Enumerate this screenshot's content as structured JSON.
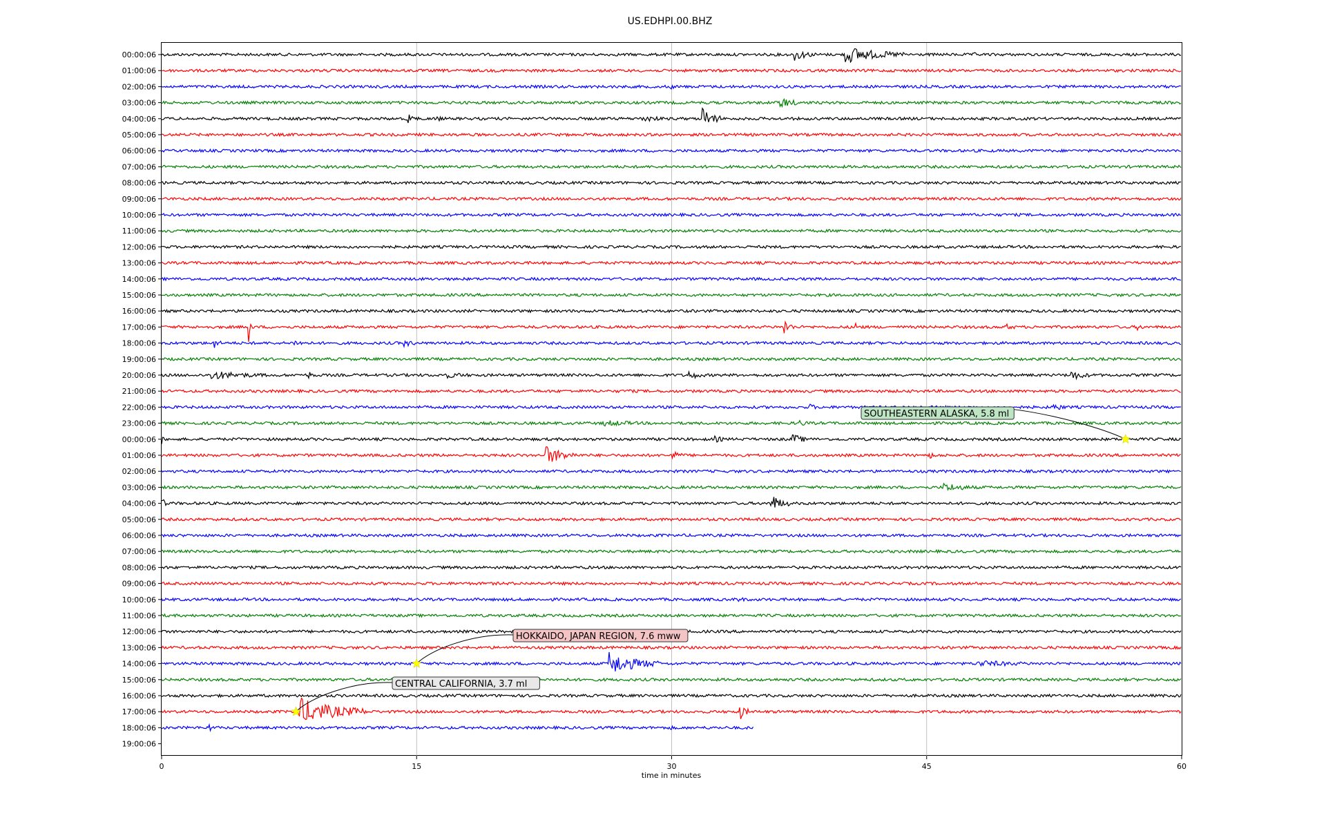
{
  "chart_data": {
    "type": "line",
    "title": "US.EDHPI.00.BHZ",
    "xlabel": "time in minutes",
    "ylabel": "",
    "xlim": [
      0,
      60
    ],
    "x_ticks": [
      "0",
      "15",
      "30",
      "45",
      "60"
    ],
    "grid": "vertical",
    "trace_colors": [
      "#000000",
      "#ff0000",
      "#0000ff",
      "#008000"
    ],
    "row_labels": [
      "00:00:06",
      "01:00:06",
      "02:00:06",
      "03:00:06",
      "04:00:06",
      "05:00:06",
      "06:00:06",
      "07:00:06",
      "08:00:06",
      "09:00:06",
      "10:00:06",
      "11:00:06",
      "12:00:06",
      "13:00:06",
      "14:00:06",
      "15:00:06",
      "16:00:06",
      "17:00:06",
      "18:00:06",
      "19:00:06",
      "20:00:06",
      "21:00:06",
      "22:00:06",
      "23:00:06",
      "00:00:06",
      "01:00:06",
      "02:00:06",
      "03:00:06",
      "04:00:06",
      "05:00:06",
      "06:00:06",
      "07:00:06",
      "08:00:06",
      "09:00:06",
      "10:00:06",
      "11:00:06",
      "12:00:06",
      "13:00:06",
      "14:00:06",
      "15:00:06",
      "16:00:06",
      "17:00:06",
      "18:00:06",
      "19:00:06"
    ],
    "trace_end_minutes": [
      60,
      60,
      60,
      60,
      60,
      60,
      60,
      60,
      60,
      60,
      60,
      60,
      60,
      60,
      60,
      60,
      60,
      60,
      60,
      60,
      60,
      60,
      60,
      60,
      60,
      60,
      60,
      60,
      60,
      60,
      60,
      60,
      60,
      60,
      60,
      60,
      60,
      60,
      60,
      60,
      60,
      60,
      34.8,
      0
    ],
    "bursts": [
      {
        "row": 0,
        "t": 37.2,
        "dur": 1.5,
        "amp": 10
      },
      {
        "row": 0,
        "t": 40.2,
        "dur": 3.6,
        "amp": 14
      },
      {
        "row": 0,
        "t": 47.8,
        "dur": 0.4,
        "amp": 4
      },
      {
        "row": 2,
        "t": 29.8,
        "dur": 0.6,
        "amp": 7
      },
      {
        "row": 3,
        "t": 36.3,
        "dur": 1.6,
        "amp": 10
      },
      {
        "row": 4,
        "t": 14.5,
        "dur": 0.6,
        "amp": 10
      },
      {
        "row": 4,
        "t": 16.1,
        "dur": 0.5,
        "amp": 8
      },
      {
        "row": 4,
        "t": 28.2,
        "dur": 2.5,
        "amp": 6
      },
      {
        "row": 4,
        "t": 31.8,
        "dur": 1.1,
        "amp": 18
      },
      {
        "row": 17,
        "t": 5.1,
        "dur": 0.2,
        "amp": 40
      },
      {
        "row": 17,
        "t": 36.6,
        "dur": 0.6,
        "amp": 14
      },
      {
        "row": 17,
        "t": 40.8,
        "dur": 0.6,
        "amp": 8
      },
      {
        "row": 17,
        "t": 49.7,
        "dur": 0.9,
        "amp": 6
      },
      {
        "row": 17,
        "t": 57.3,
        "dur": 0.6,
        "amp": 8
      },
      {
        "row": 18,
        "t": 3.0,
        "dur": 0.5,
        "amp": 12
      },
      {
        "row": 18,
        "t": 7.7,
        "dur": 2.3,
        "amp": 5
      },
      {
        "row": 18,
        "t": 14.2,
        "dur": 1.6,
        "amp": 6
      },
      {
        "row": 20,
        "t": 2.9,
        "dur": 5.0,
        "amp": 7
      },
      {
        "row": 20,
        "t": 8.6,
        "dur": 0.5,
        "amp": 8
      },
      {
        "row": 20,
        "t": 16.6,
        "dur": 3.5,
        "amp": 5
      },
      {
        "row": 20,
        "t": 31.0,
        "dur": 1.5,
        "amp": 7
      },
      {
        "row": 20,
        "t": 53.5,
        "dur": 1.7,
        "amp": 8
      },
      {
        "row": 21,
        "t": 27.4,
        "dur": 1.0,
        "amp": 4
      },
      {
        "row": 22,
        "t": 38.1,
        "dur": 0.8,
        "amp": 6
      },
      {
        "row": 22,
        "t": 52.4,
        "dur": 1.6,
        "amp": 6
      },
      {
        "row": 23,
        "t": 26.0,
        "dur": 5.0,
        "amp": 5
      },
      {
        "row": 23,
        "t": 37.5,
        "dur": 1.5,
        "amp": 5
      },
      {
        "row": 24,
        "t": 0.0,
        "dur": 0.3,
        "amp": 7
      },
      {
        "row": 24,
        "t": 37.0,
        "dur": 1.3,
        "amp": 10
      },
      {
        "row": 24,
        "t": 32.5,
        "dur": 1.8,
        "amp": 5
      },
      {
        "row": 25,
        "t": 22.6,
        "dur": 1.8,
        "amp": 16
      },
      {
        "row": 25,
        "t": 30.0,
        "dur": 1.0,
        "amp": 8
      },
      {
        "row": 25,
        "t": 45.1,
        "dur": 1.0,
        "amp": 6
      },
      {
        "row": 27,
        "t": 46.0,
        "dur": 3.0,
        "amp": 7
      },
      {
        "row": 28,
        "t": 0.0,
        "dur": 0.5,
        "amp": 9
      },
      {
        "row": 28,
        "t": 35.8,
        "dur": 1.2,
        "amp": 15
      },
      {
        "row": 34,
        "t": 33.9,
        "dur": 0.6,
        "amp": 7
      },
      {
        "row": 38,
        "t": 26.3,
        "dur": 3.0,
        "amp": 18
      },
      {
        "row": 38,
        "t": 48.0,
        "dur": 7.0,
        "amp": 5
      },
      {
        "row": 41,
        "t": 8.0,
        "dur": 4.0,
        "amp": 22
      },
      {
        "row": 41,
        "t": 33.9,
        "dur": 0.6,
        "amp": 18
      },
      {
        "row": 41,
        "t": 45.9,
        "dur": 0.5,
        "amp": 5
      },
      {
        "row": 42,
        "t": 2.8,
        "dur": 0.3,
        "amp": 8
      },
      {
        "row": 42,
        "t": 29.9,
        "dur": 0.3,
        "amp": 6
      }
    ],
    "annotations": [
      {
        "text": "SOUTHEASTERN ALASKA, 5.8 ml",
        "row": 24,
        "x_minutes": 56.7,
        "box_color": "#bde5c3"
      },
      {
        "text": "HOKKAIDO, JAPAN REGION, 7.6 mww",
        "row": 38,
        "x_minutes": 15.0,
        "box_color": "#f4c4c4"
      },
      {
        "text": "CENTRAL CALIFORNIA, 3.7 ml",
        "row": 41,
        "x_minutes": 7.9,
        "box_color": "#e8e8e8"
      }
    ],
    "event_marker_color": "#ffff00"
  }
}
